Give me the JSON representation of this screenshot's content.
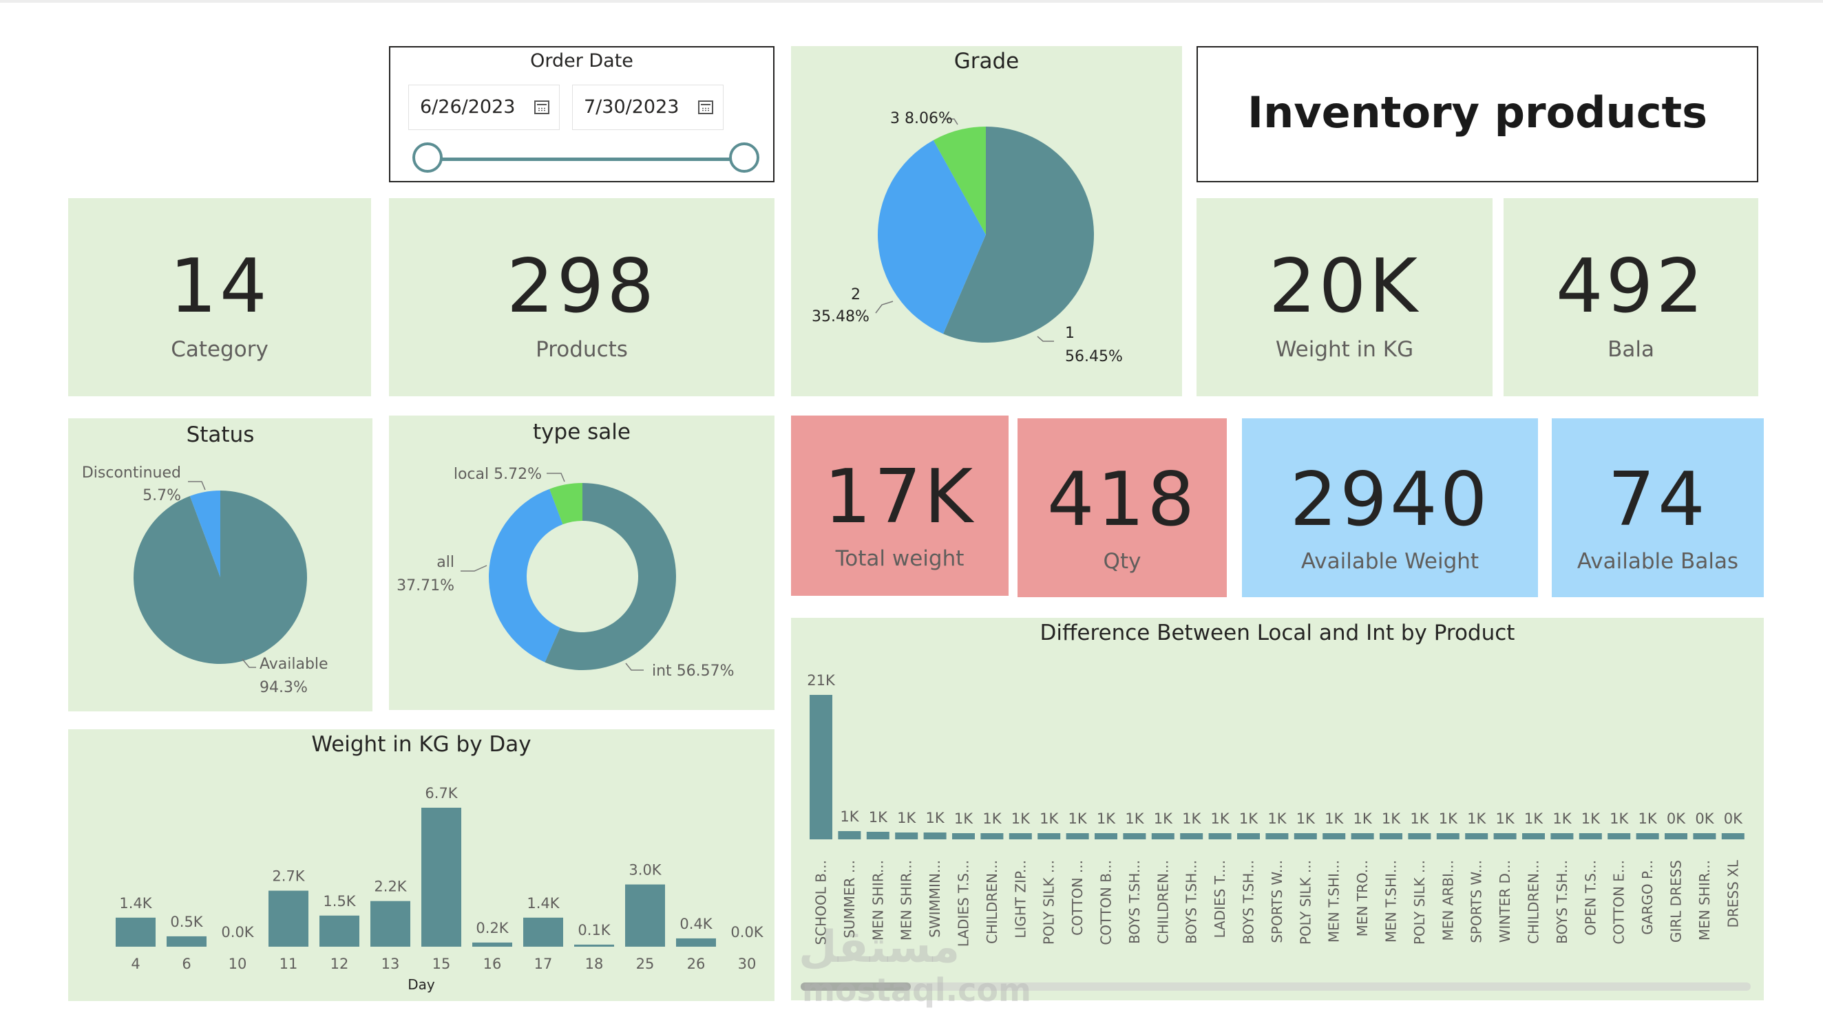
{
  "title": "Inventory products",
  "date_slicer": {
    "title": "Order Date",
    "start": "6/26/2023",
    "end": "7/30/2023"
  },
  "kpis": {
    "category": {
      "value": "14",
      "label": "Category"
    },
    "products": {
      "value": "298",
      "label": "Products"
    },
    "weight_kg": {
      "value": "20K",
      "label": "Weight in KG"
    },
    "bala": {
      "value": "492",
      "label": "Bala"
    },
    "total_weight": {
      "value": "17K",
      "label": "Total weight"
    },
    "qty": {
      "value": "418",
      "label": "Qty"
    },
    "available_weight": {
      "value": "2940",
      "label": "Available Weight"
    },
    "available_balas": {
      "value": "74",
      "label": "Available Balas"
    }
  },
  "colors": {
    "teal": "#5b8e93",
    "blue": "#4ba5f2",
    "green": "#6dd95b",
    "panel_green": "#e2f0d9",
    "panel_red": "#ec9c9b",
    "panel_blue": "#a6d9fa"
  },
  "watermark": {
    "logo": "مستقل",
    "site": "mostaql.com"
  },
  "chart_data": [
    {
      "id": "grade",
      "type": "pie",
      "title": "Grade",
      "slices": [
        {
          "name": "1",
          "value": 56.45,
          "label": "56.45%",
          "color": "#5b8e93"
        },
        {
          "name": "2",
          "value": 35.48,
          "label": "35.48%",
          "color": "#4ba5f2"
        },
        {
          "name": "3",
          "value": 8.06,
          "label": "8.06%",
          "color": "#6dd95b"
        }
      ]
    },
    {
      "id": "status",
      "type": "pie",
      "title": "Status",
      "slices": [
        {
          "name": "Available",
          "value": 94.3,
          "label": "94.3%",
          "color": "#5b8e93"
        },
        {
          "name": "Discontinued",
          "value": 5.7,
          "label": "5.7%",
          "color": "#4ba5f2"
        }
      ]
    },
    {
      "id": "type_sale",
      "type": "pie",
      "donut": true,
      "title": "type sale",
      "slices": [
        {
          "name": "int",
          "value": 56.57,
          "label": "56.57%",
          "color": "#5b8e93"
        },
        {
          "name": "all",
          "value": 37.71,
          "label": "37.71%",
          "color": "#4ba5f2"
        },
        {
          "name": "local",
          "value": 5.72,
          "label": "5.72%",
          "color": "#6dd95b"
        }
      ]
    },
    {
      "id": "weight_by_day",
      "type": "bar",
      "title": "Weight in KG by Day",
      "xlabel": "Day",
      "ylabel": "",
      "categories": [
        "4",
        "6",
        "10",
        "11",
        "12",
        "13",
        "15",
        "16",
        "17",
        "18",
        "25",
        "26",
        "30"
      ],
      "values": [
        1.4,
        0.5,
        0.0,
        2.7,
        1.5,
        2.2,
        6.7,
        0.2,
        1.4,
        0.1,
        3.0,
        0.4,
        0.0
      ],
      "data_labels": [
        "1.4K",
        "0.5K",
        "0.0K",
        "2.7K",
        "1.5K",
        "2.2K",
        "6.7K",
        "0.2K",
        "1.4K",
        "0.1K",
        "3.0K",
        "0.4K",
        "0.0K"
      ],
      "unit": "K",
      "ylim": [
        0,
        6.7
      ]
    },
    {
      "id": "diff_local_int",
      "type": "bar",
      "title": "Difference Between Local and Int by Product",
      "xlabel": "",
      "ylabel": "",
      "categories": [
        "SCHOOL B...",
        "SUMMER ...",
        "MEN SHIR...",
        "MEN SHIR...",
        "SWIMMIN...",
        "LADIES T.S...",
        "CHILDREN...",
        "LIGHT ZIP...",
        "POLY SILK ...",
        "COTTON ...",
        "COTTON B...",
        "BOYS T.SH...",
        "CHILDREN...",
        "BOYS T.SH...",
        "LADIES T....",
        "BOYS T.SH...",
        "SPORTS W...",
        "POLY SILK ...",
        "MEN T.SHI...",
        "MEN TRO...",
        "MEN T.SHI...",
        "POLY SILK ...",
        "MEN ARBI...",
        "SPORTS W...",
        "WINTER D...",
        "CHILDREN...",
        "BOYS T.SH...",
        "OPEN T.S...",
        "COTTON E...",
        "GARGO P...",
        "GIRL DRESS",
        "MEN SHIR...",
        "DRESS XL"
      ],
      "values": [
        21,
        1.2,
        1.1,
        1.0,
        1.0,
        0.9,
        0.9,
        0.9,
        0.8,
        0.8,
        0.8,
        0.7,
        0.7,
        0.7,
        0.7,
        0.7,
        0.6,
        0.6,
        0.6,
        0.6,
        0.6,
        0.6,
        0.6,
        0.6,
        0.6,
        0.6,
        0.6,
        0.6,
        0.6,
        0.6,
        0.4,
        0.4,
        0.4
      ],
      "data_labels": [
        "21K",
        "1K",
        "1K",
        "1K",
        "1K",
        "1K",
        "1K",
        "1K",
        "1K",
        "1K",
        "1K",
        "1K",
        "1K",
        "1K",
        "1K",
        "1K",
        "1K",
        "1K",
        "1K",
        "1K",
        "1K",
        "1K",
        "1K",
        "1K",
        "1K",
        "1K",
        "1K",
        "1K",
        "1K",
        "1K",
        "0K",
        "0K",
        "0K"
      ],
      "unit": "K",
      "ylim": [
        0,
        21
      ]
    }
  ]
}
